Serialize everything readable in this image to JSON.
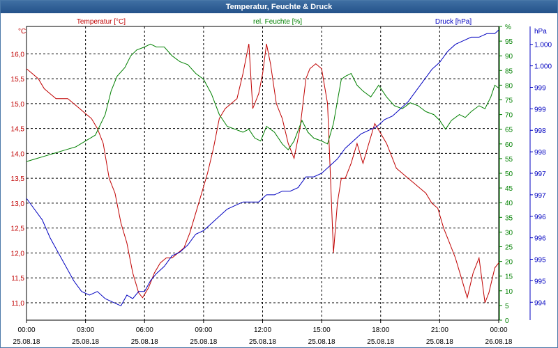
{
  "window": {
    "title": "Temperatur, Feuchte & Druck"
  },
  "colors": {
    "temperature": "#c00000",
    "humidity": "#008000",
    "pressure": "#0000c0",
    "grid": "#000000",
    "titlebar": "#2a5a92"
  },
  "chart_data": {
    "type": "line",
    "title": "Temperatur, Feuchte & Druck",
    "grid": true,
    "x": {
      "times": [
        "00:00",
        "03:00",
        "06:00",
        "09:00",
        "12:00",
        "15:00",
        "18:00",
        "21:00",
        "00:00"
      ],
      "dates": [
        "25.08.18",
        "25.08.18",
        "25.08.18",
        "25.08.18",
        "25.08.18",
        "25.08.18",
        "25.08.18",
        "25.08.18",
        "26.08.18"
      ],
      "range_hours": [
        0,
        24
      ]
    },
    "axes": {
      "temperature": {
        "unit": "°C",
        "title": "Temperatur [°C]",
        "ylim": [
          10.65,
          16.55
        ],
        "ticks": [
          "11,0",
          "11,5",
          "12,0",
          "12,5",
          "13,0",
          "13,5",
          "14,0",
          "14,5",
          "15,0",
          "15,5",
          "16,0"
        ],
        "tick_values": [
          11.0,
          11.5,
          12.0,
          12.5,
          13.0,
          13.5,
          14.0,
          14.5,
          15.0,
          15.5,
          16.0
        ]
      },
      "humidity": {
        "unit": "%",
        "title": "rel. Feuchte [%]",
        "ylim": [
          0,
          100
        ],
        "ticks": [
          "0",
          "5",
          "10",
          "15",
          "20",
          "25",
          "30",
          "35",
          "40",
          "45",
          "50",
          "55",
          "60",
          "65",
          "70",
          "75",
          "80",
          "85",
          "90",
          "95",
          "%"
        ],
        "tick_values": [
          0,
          5,
          10,
          15,
          20,
          25,
          30,
          35,
          40,
          45,
          50,
          55,
          60,
          65,
          70,
          75,
          80,
          85,
          90,
          95,
          100
        ]
      },
      "pressure": {
        "unit": "hPa",
        "title": "Druck [hPa]",
        "ylim": [
          993.5,
          1001.7
        ],
        "ticks": [
          "994",
          "995",
          "995",
          "996",
          "996",
          "997",
          "997",
          "998",
          "998",
          "999",
          "999",
          "1.000",
          "1.000",
          "1.001",
          "1.001"
        ],
        "tick_values": [
          994.0,
          994.6,
          995.2,
          995.8,
          996.4,
          997.0,
          997.6,
          998.2,
          998.8,
          999.4,
          1000.0,
          1000.6,
          1001.2,
          1001.8,
          1002.4
        ]
      }
    },
    "series": [
      {
        "name": "Temperatur [°C]",
        "axis": "temperature",
        "x": [
          0,
          0.3,
          0.6,
          0.9,
          1.2,
          1.5,
          1.8,
          2.1,
          2.4,
          2.7,
          3.0,
          3.3,
          3.6,
          3.9,
          4.2,
          4.5,
          4.8,
          5.1,
          5.4,
          5.7,
          5.9,
          6.2,
          6.5,
          6.8,
          7.1,
          7.4,
          7.7,
          8.0,
          8.3,
          8.6,
          8.9,
          9.2,
          9.5,
          9.8,
          10.1,
          10.4,
          10.7,
          11.0,
          11.3,
          11.5,
          11.8,
          12.0,
          12.2,
          12.4,
          12.7,
          13.0,
          13.3,
          13.6,
          13.9,
          14.2,
          14.4,
          14.7,
          15.0,
          15.3,
          15.6,
          15.8,
          16.0,
          16.2,
          16.5,
          16.8,
          17.1,
          17.4,
          17.7,
          18.0,
          18.3,
          18.5,
          18.8,
          19.1,
          19.4,
          19.7,
          20.0,
          20.3,
          20.6,
          20.9,
          21.2,
          21.5,
          21.8,
          22.1,
          22.4,
          22.7,
          23.0,
          23.3,
          23.5,
          23.8,
          24.0
        ],
        "values": [
          15.7,
          15.6,
          15.5,
          15.3,
          15.2,
          15.1,
          15.1,
          15.1,
          15.0,
          14.9,
          14.8,
          14.7,
          14.5,
          14.2,
          13.5,
          13.2,
          12.6,
          12.2,
          11.6,
          11.2,
          11.1,
          11.3,
          11.6,
          11.8,
          11.9,
          11.9,
          12.0,
          12.1,
          12.4,
          12.8,
          13.2,
          13.6,
          14.1,
          14.7,
          14.9,
          15.0,
          15.1,
          15.6,
          16.2,
          14.9,
          15.2,
          15.6,
          16.2,
          15.8,
          15.0,
          14.7,
          14.2,
          13.9,
          14.5,
          15.5,
          15.7,
          15.8,
          15.7,
          15.0,
          12.0,
          13.0,
          13.5,
          13.5,
          13.8,
          14.2,
          13.8,
          14.2,
          14.6,
          14.4,
          14.2,
          14.0,
          13.7,
          13.6,
          13.5,
          13.4,
          13.3,
          13.2,
          13.0,
          12.9,
          12.5,
          12.2,
          11.9,
          11.5,
          11.1,
          11.6,
          11.9,
          11.0,
          11.2,
          11.7,
          11.8
        ]
      },
      {
        "name": "rel. Feuchte [%]",
        "axis": "humidity",
        "x": [
          0,
          0.5,
          1.0,
          1.5,
          2.0,
          2.5,
          3.0,
          3.5,
          4.0,
          4.3,
          4.6,
          5.0,
          5.3,
          5.6,
          6.0,
          6.3,
          6.6,
          7.0,
          7.4,
          7.8,
          8.2,
          8.6,
          9.0,
          9.4,
          9.8,
          10.2,
          10.6,
          11.0,
          11.3,
          11.6,
          11.9,
          12.2,
          12.6,
          13.0,
          13.3,
          13.6,
          14.0,
          14.3,
          14.6,
          15.0,
          15.3,
          15.6,
          16.0,
          16.2,
          16.5,
          16.8,
          17.1,
          17.5,
          17.9,
          18.3,
          18.7,
          19.1,
          19.5,
          19.9,
          20.3,
          20.7,
          21.0,
          21.3,
          21.6,
          22.0,
          22.3,
          22.6,
          23.0,
          23.3,
          23.6,
          23.8,
          24.0
        ],
        "values": [
          54,
          55,
          56,
          57,
          58,
          59,
          61,
          63,
          70,
          78,
          83,
          86,
          90,
          92,
          93,
          94,
          93,
          93,
          90,
          88,
          87,
          84,
          82,
          77,
          70,
          66,
          65,
          64,
          65,
          62,
          61,
          66,
          64,
          60,
          58,
          61,
          68,
          64,
          62,
          61,
          60,
          67,
          82,
          83,
          84,
          80,
          78,
          76,
          80,
          76,
          73,
          72,
          74,
          73,
          71,
          70,
          68,
          65,
          68,
          70,
          69,
          71,
          73,
          72,
          76,
          80,
          79
        ]
      },
      {
        "name": "Druck [hPa]",
        "axis": "pressure",
        "x": [
          0,
          0.4,
          0.8,
          1.2,
          1.6,
          2.0,
          2.4,
          2.8,
          3.2,
          3.6,
          4.0,
          4.4,
          4.8,
          5.1,
          5.4,
          5.7,
          6.0,
          6.3,
          6.6,
          7.0,
          7.4,
          7.8,
          8.2,
          8.6,
          9.0,
          9.4,
          9.8,
          10.2,
          10.6,
          11.0,
          11.4,
          11.8,
          12.2,
          12.6,
          13.0,
          13.4,
          13.8,
          14.2,
          14.6,
          15.0,
          15.4,
          15.8,
          16.2,
          16.6,
          17.0,
          17.4,
          17.8,
          18.2,
          18.6,
          19.0,
          19.4,
          19.8,
          20.2,
          20.6,
          21.0,
          21.4,
          21.8,
          22.2,
          22.6,
          23.0,
          23.4,
          23.8,
          24.0
        ],
        "values": [
          996.9,
          996.6,
          996.3,
          995.8,
          995.4,
          995.0,
          994.6,
          994.3,
          994.2,
          994.3,
          994.1,
          994.0,
          993.9,
          994.2,
          994.1,
          994.3,
          994.3,
          994.6,
          994.8,
          995.0,
          995.3,
          995.4,
          995.6,
          995.9,
          996.0,
          996.2,
          996.4,
          996.6,
          996.7,
          996.8,
          996.8,
          996.8,
          997.0,
          997.0,
          997.1,
          997.1,
          997.2,
          997.5,
          997.5,
          997.6,
          997.8,
          998.0,
          998.3,
          998.5,
          998.7,
          998.8,
          998.9,
          999.1,
          999.2,
          999.4,
          999.6,
          999.9,
          1000.2,
          1000.5,
          1000.7,
          1001.0,
          1001.2,
          1001.3,
          1001.4,
          1001.4,
          1001.5,
          1001.5,
          1001.6
        ]
      }
    ]
  }
}
